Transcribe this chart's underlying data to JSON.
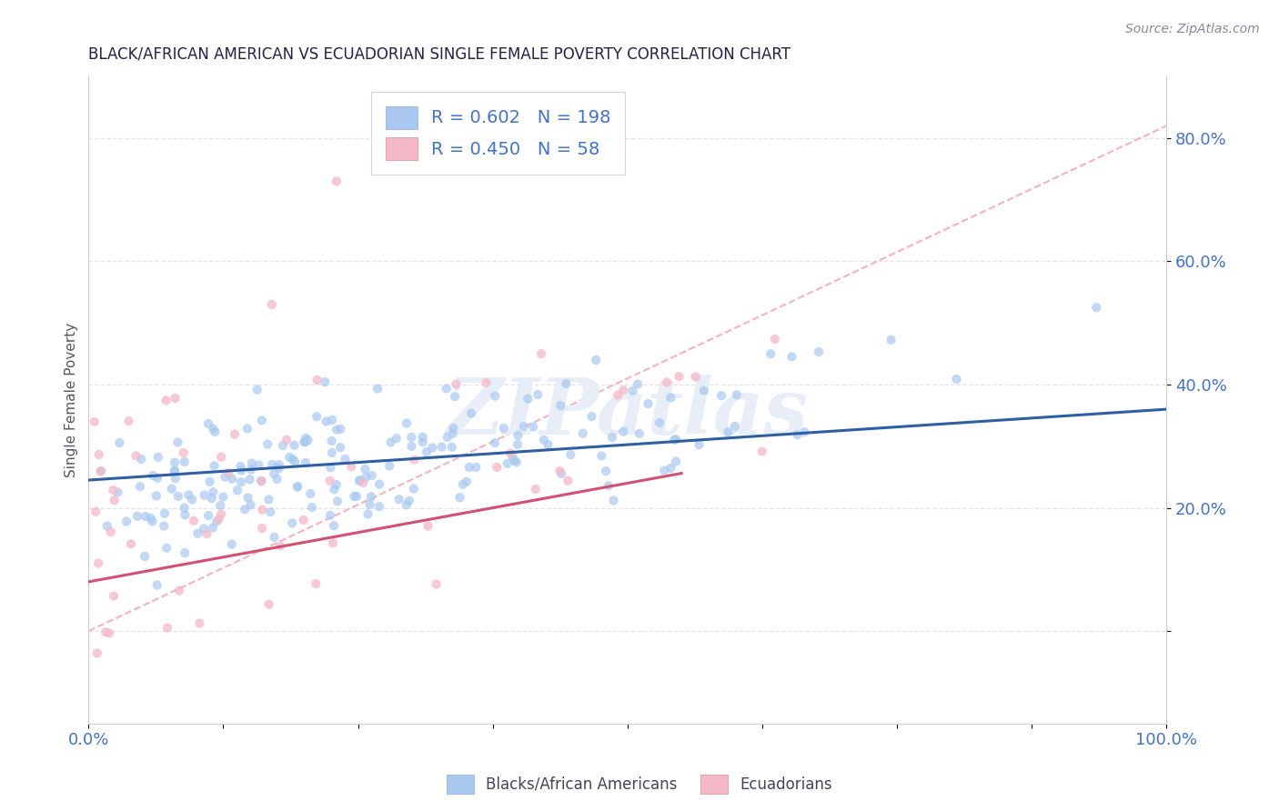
{
  "title": "BLACK/AFRICAN AMERICAN VS ECUADORIAN SINGLE FEMALE POVERTY CORRELATION CHART",
  "source": "Source: ZipAtlas.com",
  "ylabel": "Single Female Poverty",
  "xlim": [
    0,
    1.0
  ],
  "ylim": [
    -0.15,
    0.9
  ],
  "yticks": [
    0.0,
    0.2,
    0.4,
    0.6,
    0.8
  ],
  "blue_R": 0.602,
  "blue_N": 198,
  "pink_R": 0.45,
  "pink_N": 58,
  "blue_color": "#A8C8F0",
  "pink_color": "#F5B8C8",
  "blue_line_color": "#2E5FA3",
  "pink_line_color": "#D45070",
  "ref_line_color": "#F0A0B0",
  "background_color": "#FFFFFF",
  "grid_color": "#E0E0EC",
  "title_color": "#222244",
  "tick_color": "#4472C4",
  "watermark_text": "ZIPatlas",
  "watermark_color": "#E8EEF8",
  "blue_line_intercept": 0.245,
  "blue_line_slope": 0.115,
  "pink_line_intercept": 0.08,
  "pink_line_slope": 0.32,
  "ref_line_intercept": 0.0,
  "ref_line_slope": 0.82
}
